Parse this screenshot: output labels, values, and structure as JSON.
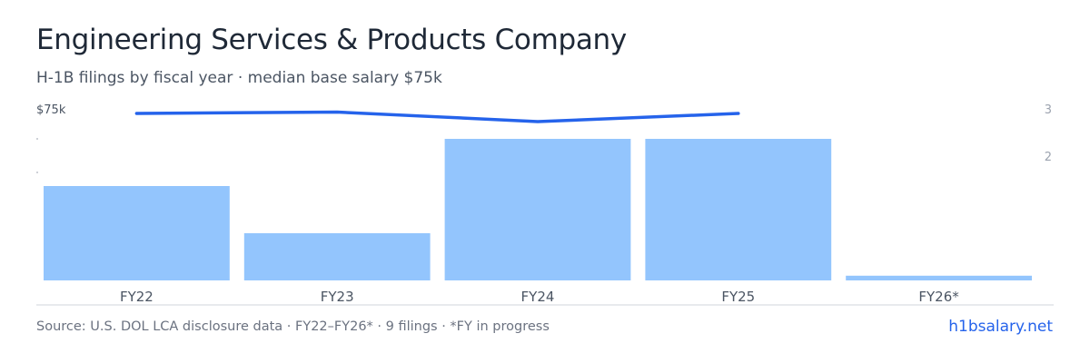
{
  "header": {
    "title": "Engineering Services & Products Company",
    "subtitle": "H-1B filings by fiscal year · median base salary $75k"
  },
  "footer": {
    "source": "Source: U.S. DOL LCA disclosure data · FY22–FY26* · 9 filings · *FY in progress",
    "brand": "h1bsalary.net"
  },
  "colors": {
    "bar": "#93c5fd",
    "line": "#2563eb",
    "axis_text": "#9ca3af",
    "baseline": "#d1d5db"
  },
  "chart_data": {
    "type": "bar",
    "categories": [
      "FY22",
      "FY23",
      "FY24",
      "FY25",
      "FY26*"
    ],
    "series": [
      {
        "values": [
          2,
          1,
          3,
          3,
          0.1
        ],
        "axis": "right"
      },
      {
        "type": "line",
        "values": [
          75000,
          75500,
          72000,
          75000,
          null
        ],
        "axis": "left"
      }
    ],
    "right_axis": {
      "ylim": [
        0,
        3
      ],
      "ticks": [
        "2",
        "3"
      ]
    },
    "left_axis": {
      "tick_label": "$75k"
    },
    "legend": "none",
    "grid": false
  }
}
